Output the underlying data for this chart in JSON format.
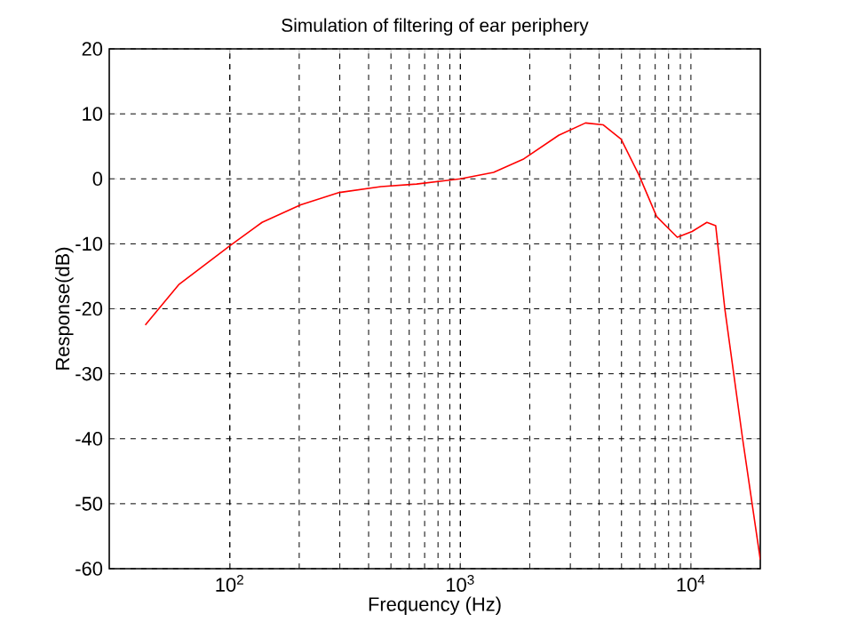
{
  "chart_data": {
    "type": "line",
    "title": "Simulation of filtering of ear periphery",
    "xlabel": "Frequency (Hz)",
    "ylabel": "Response(dB)",
    "log": "x",
    "grid": true,
    "xlim": [
      30,
      20000
    ],
    "ylim": [
      -60,
      20
    ],
    "xticks": [
      {
        "value": 100,
        "label": "10$^{2}$"
      },
      {
        "value": 1000,
        "label": "10$^{3}$"
      },
      {
        "value": 10000,
        "label": "10$^{4}$"
      }
    ],
    "yticks": [
      -60,
      -50,
      -40,
      -30,
      -20,
      -10,
      0,
      10,
      20
    ],
    "x": [
      43,
      60,
      100,
      138,
      203,
      299,
      453,
      646,
      1000,
      1393,
      1870,
      2670,
      3490,
      4170,
      4980,
      5950,
      7100,
      8730,
      10120,
      11730,
      12810,
      14020,
      16760,
      20000
    ],
    "series": [
      {
        "color": "#ff0000",
        "values": [
          -22.5,
          -16.3,
          -10.3,
          -6.7,
          -4.0,
          -2.1,
          -1.2,
          -0.8,
          0,
          1.0,
          3.0,
          6.7,
          8.6,
          8.3,
          6.1,
          0.6,
          -5.8,
          -9.0,
          -8.1,
          -6.7,
          -7.2,
          -19.9,
          -40,
          -58.6
        ]
      }
    ]
  }
}
